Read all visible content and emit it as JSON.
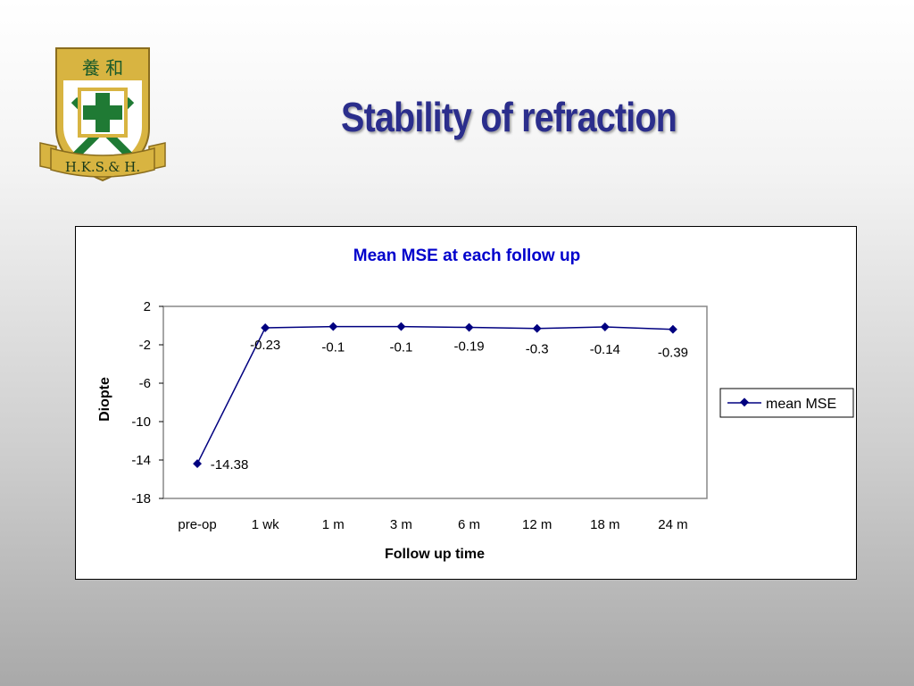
{
  "slide": {
    "title": "Stability of refraction",
    "logo": {
      "top_text": "養 和",
      "ribbon_text": "H.K.S.& H.",
      "colors": {
        "gold": "#d8b441",
        "green": "#1f7a34",
        "white": "#ffffff"
      }
    }
  },
  "chart_data": {
    "type": "line",
    "title": "Mean MSE at each follow up",
    "xlabel": "Follow up time",
    "ylabel": "Diopte",
    "categories": [
      "pre-op",
      "1 wk",
      "1 m",
      "3 m",
      "6 m",
      "12 m",
      "18 m",
      "24 m"
    ],
    "series": [
      {
        "name": "mean MSE",
        "values": [
          -14.38,
          -0.23,
          -0.1,
          -0.1,
          -0.19,
          -0.3,
          -0.14,
          -0.39
        ],
        "color": "#000080"
      }
    ],
    "data_labels": [
      "-14.38",
      "-0.23",
      "-0.1",
      "-0.1",
      "-0.19",
      "-0.3",
      "-0.14",
      "-0.39"
    ],
    "ylim": [
      -18,
      2
    ],
    "yticks": [
      2,
      -2,
      -6,
      -10,
      -14,
      -18
    ],
    "grid": false,
    "legend": "right",
    "colors": {
      "title": "#0000cc",
      "plot_border": "#888888"
    }
  }
}
